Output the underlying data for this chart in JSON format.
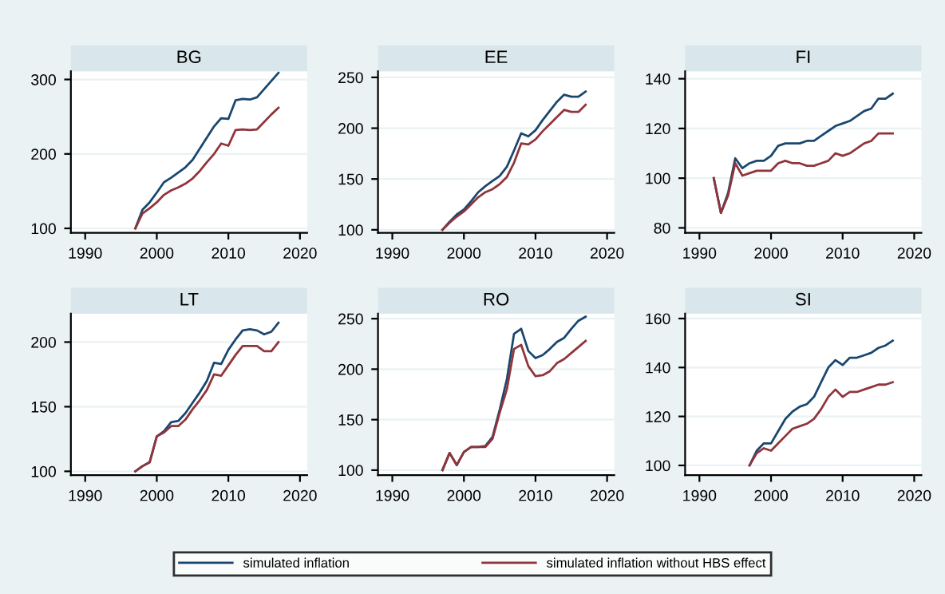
{
  "chart_data": [
    {
      "type": "line",
      "title": "BG",
      "x": [
        1997,
        1998,
        1999,
        2000,
        2001,
        2002,
        2003,
        2004,
        2005,
        2006,
        2007,
        2008,
        2009,
        2010,
        2011,
        2012,
        2013,
        2014,
        2015,
        2016,
        2017
      ],
      "xlim": [
        1988,
        2021
      ],
      "xticks": [
        1990,
        2000,
        2010,
        2020
      ],
      "ylim": [
        94,
        311
      ],
      "yticks": [
        100,
        200,
        300
      ],
      "grid": "y",
      "legend": "bottom",
      "series": [
        {
          "name": "simulated inflation",
          "color": "#1a476f",
          "values": [
            100,
            125,
            135,
            148,
            162,
            168,
            175,
            182,
            192,
            207,
            222,
            237,
            248,
            247,
            272,
            274,
            273,
            276,
            287,
            298,
            309
          ]
        },
        {
          "name": "simulated inflation without HBS effect",
          "color": "#90353b",
          "values": [
            100,
            120,
            127,
            135,
            145,
            151,
            155,
            160,
            167,
            177,
            189,
            200,
            214,
            211,
            232,
            233,
            232,
            233,
            243,
            253,
            262
          ]
        }
      ]
    },
    {
      "type": "line",
      "title": "EE",
      "x": [
        1997,
        1998,
        1999,
        2000,
        2001,
        2002,
        2003,
        2004,
        2005,
        2006,
        2007,
        2008,
        2009,
        2010,
        2011,
        2012,
        2013,
        2014,
        2015,
        2016,
        2017
      ],
      "xlim": [
        1988,
        2021
      ],
      "xticks": [
        1990,
        2000,
        2010,
        2020
      ],
      "ylim": [
        97,
        256
      ],
      "yticks": [
        100,
        150,
        200,
        250
      ],
      "grid": "y",
      "series": [
        {
          "color": "#1a476f",
          "values": [
            100,
            108,
            115,
            120,
            128,
            137,
            143,
            148,
            153,
            162,
            178,
            195,
            192,
            198,
            208,
            217,
            226,
            233,
            231,
            231,
            236
          ]
        },
        {
          "color": "#90353b",
          "values": [
            100,
            107,
            113,
            118,
            125,
            132,
            137,
            140,
            145,
            152,
            166,
            185,
            184,
            189,
            197,
            204,
            211,
            218,
            216,
            216,
            223
          ]
        }
      ]
    },
    {
      "type": "line",
      "title": "FI",
      "x": [
        1992,
        1993,
        1994,
        1995,
        1996,
        1997,
        1998,
        1999,
        2000,
        2001,
        2002,
        2003,
        2004,
        2005,
        2006,
        2007,
        2008,
        2009,
        2010,
        2011,
        2012,
        2013,
        2014,
        2015,
        2016,
        2017
      ],
      "xlim": [
        1988,
        2021
      ],
      "xticks": [
        1990,
        2000,
        2010,
        2020
      ],
      "ylim": [
        78,
        143
      ],
      "yticks": [
        80,
        100,
        120,
        140
      ],
      "grid": "y",
      "series": [
        {
          "color": "#1a476f",
          "values": [
            100,
            86,
            94,
            108,
            104,
            106,
            107,
            107,
            109,
            113,
            114,
            114,
            114,
            115,
            115,
            117,
            119,
            121,
            122,
            123,
            125,
            127,
            128,
            132,
            132,
            134
          ]
        },
        {
          "color": "#90353b",
          "values": [
            100,
            86,
            93,
            106,
            101,
            102,
            103,
            103,
            103,
            106,
            107,
            106,
            106,
            105,
            105,
            106,
            107,
            110,
            109,
            110,
            112,
            114,
            115,
            118,
            118,
            118
          ]
        }
      ]
    },
    {
      "type": "line",
      "title": "LT",
      "x": [
        1997,
        1998,
        1999,
        2000,
        2001,
        2002,
        2003,
        2004,
        2005,
        2006,
        2007,
        2008,
        2009,
        2010,
        2011,
        2012,
        2013,
        2014,
        2015,
        2016,
        2017
      ],
      "xlim": [
        1988,
        2021
      ],
      "xticks": [
        1990,
        2000,
        2010,
        2020
      ],
      "ylim": [
        97,
        222
      ],
      "yticks": [
        100,
        150,
        200
      ],
      "grid": "y",
      "series": [
        {
          "color": "#1a476f",
          "values": [
            100,
            104,
            107,
            127,
            131,
            138,
            139,
            145,
            153,
            161,
            170,
            184,
            183,
            194,
            202,
            209,
            210,
            209,
            206,
            208,
            215
          ]
        },
        {
          "color": "#90353b",
          "values": [
            100,
            104,
            107,
            127,
            130,
            135,
            135,
            140,
            148,
            155,
            163,
            175,
            174,
            182,
            190,
            197,
            197,
            197,
            193,
            193,
            200
          ]
        }
      ]
    },
    {
      "type": "line",
      "title": "RO",
      "x": [
        1997,
        1998,
        1999,
        2000,
        2001,
        2002,
        2003,
        2004,
        2005,
        2006,
        2007,
        2008,
        2009,
        2010,
        2011,
        2012,
        2013,
        2014,
        2015,
        2016,
        2017
      ],
      "xlim": [
        1988,
        2021
      ],
      "xticks": [
        1990,
        2000,
        2010,
        2020
      ],
      "ylim": [
        95,
        255
      ],
      "yticks": [
        100,
        150,
        200,
        250
      ],
      "grid": "y",
      "series": [
        {
          "color": "#1a476f",
          "values": [
            100,
            117,
            105,
            118,
            123,
            123,
            124,
            133,
            160,
            190,
            235,
            240,
            218,
            211,
            214,
            220,
            227,
            231,
            240,
            248,
            252
          ]
        },
        {
          "color": "#90353b",
          "values": [
            100,
            117,
            105,
            118,
            123,
            123,
            123,
            131,
            157,
            180,
            220,
            224,
            203,
            193,
            194,
            198,
            206,
            210,
            216,
            222,
            228
          ]
        }
      ]
    },
    {
      "type": "line",
      "title": "SI",
      "x": [
        1997,
        1998,
        1999,
        2000,
        2001,
        2002,
        2003,
        2004,
        2005,
        2006,
        2007,
        2008,
        2009,
        2010,
        2011,
        2012,
        2013,
        2014,
        2015,
        2016,
        2017
      ],
      "xlim": [
        1988,
        2021
      ],
      "xticks": [
        1990,
        2000,
        2010,
        2020
      ],
      "ylim": [
        96,
        162
      ],
      "yticks": [
        100,
        120,
        140,
        160
      ],
      "grid": "y",
      "series": [
        {
          "color": "#1a476f",
          "values": [
            100,
            106,
            109,
            109,
            114,
            119,
            122,
            124,
            125,
            128,
            134,
            140,
            143,
            141,
            144,
            144,
            145,
            146,
            148,
            149,
            151
          ]
        },
        {
          "color": "#90353b",
          "values": [
            100,
            105,
            107,
            106,
            109,
            112,
            115,
            116,
            117,
            119,
            123,
            128,
            131,
            128,
            130,
            130,
            131,
            132,
            133,
            133,
            134
          ]
        }
      ]
    }
  ]
}
